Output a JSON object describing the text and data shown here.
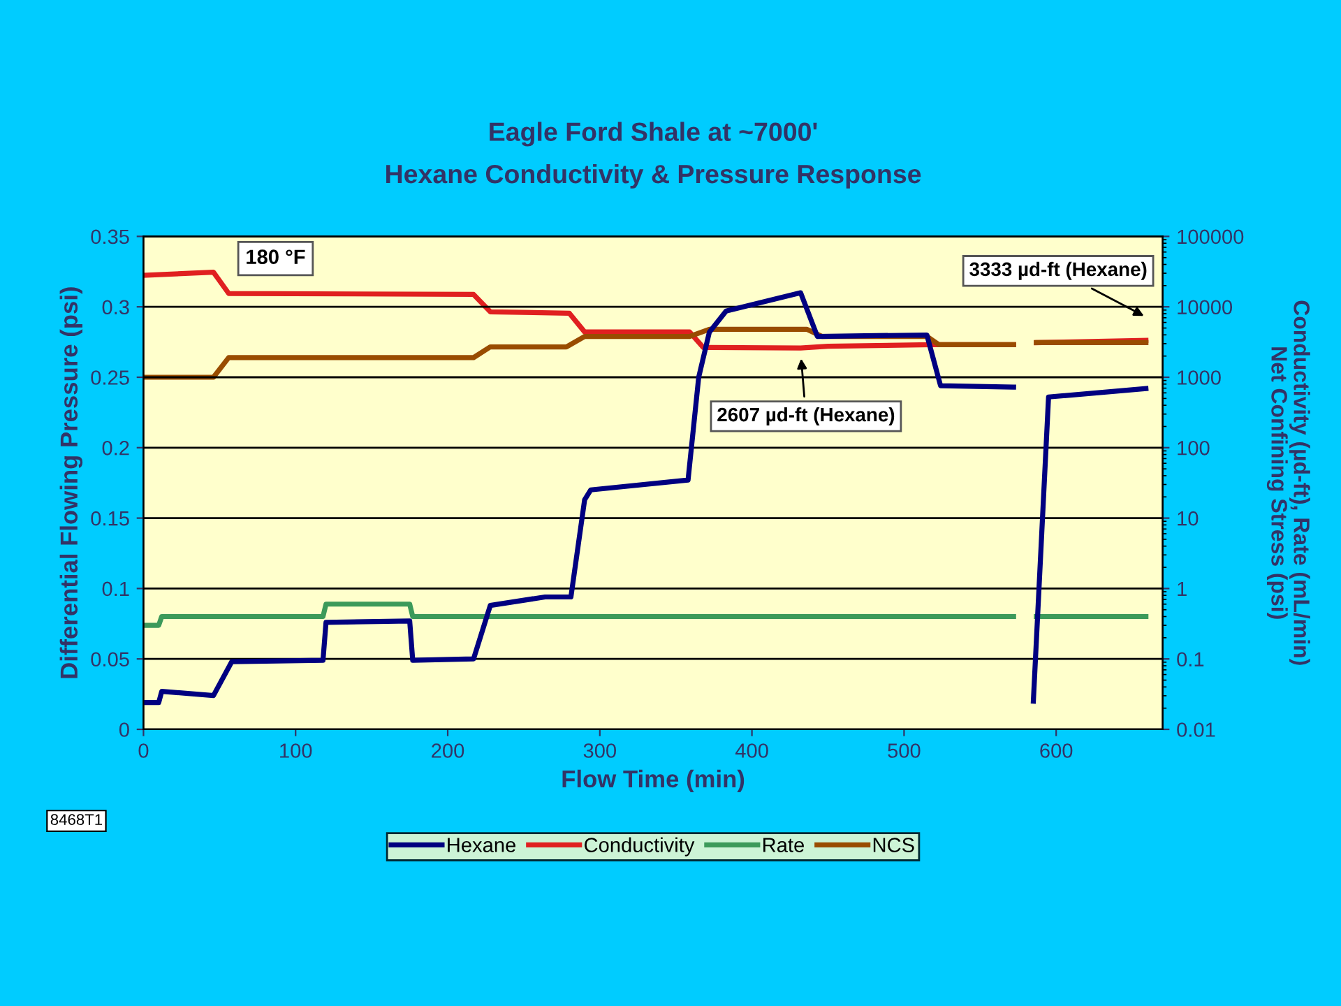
{
  "chart_data": {
    "type": "line",
    "title": "Eagle Ford Shale at ~7000'",
    "subtitle": "Hexane Conductivity & Pressure Response",
    "xlabel": "Flow Time (min)",
    "ylabel": "Differential Flowing Pressure (psi)",
    "y2label": "Conductivity (µd-ft), Rate (mL/min)\nNet Confining Stress (psi)",
    "xlim": [
      0,
      670
    ],
    "xticks": [
      0,
      100,
      200,
      300,
      400,
      500,
      600
    ],
    "ylim": [
      0,
      0.35
    ],
    "yticks": [
      0,
      0.05,
      0.1,
      0.15,
      0.2,
      0.25,
      0.3,
      0.35
    ],
    "y2lim": [
      0.01,
      100000
    ],
    "y2ticks": [
      0.01,
      0.1,
      1,
      10,
      100,
      1000,
      10000,
      100000
    ],
    "log": "y2",
    "grid": "y",
    "legend": "bottom",
    "marker": "none",
    "line_style": "solid",
    "series": [
      {
        "name": "Hexane",
        "color": "#000080",
        "x": [
          0,
          10,
          12,
          46,
          58,
          118,
          120,
          175,
          177,
          217,
          228,
          264,
          281,
          290,
          294,
          358,
          365,
          372,
          383,
          432,
          443,
          515,
          524,
          572,
          578,
          585,
          595,
          659
        ],
        "values": [
          0.019,
          0.019,
          0.027,
          0.024,
          0.048,
          0.049,
          0.076,
          0.077,
          0.049,
          0.05,
          0.088,
          0.094,
          0.094,
          0.163,
          0.17,
          0.177,
          0.25,
          0.282,
          0.297,
          0.31,
          0.279,
          0.28,
          0.244,
          0.243,
          null,
          0.02,
          0.236,
          0.242
        ]
      },
      {
        "name": "Conductivity",
        "color": "#e02020",
        "axis": "y2",
        "x": [
          0,
          46,
          56,
          217,
          228,
          280,
          290,
          359,
          368,
          432,
          450,
          518,
          572,
          580,
          587,
          659
        ],
        "values": [
          28000,
          31000,
          15500,
          15000,
          8500,
          8100,
          4400,
          4400,
          2650,
          2607,
          2750,
          2900,
          2900,
          null,
          3100,
          3333
        ]
      },
      {
        "name": "Rate",
        "color": "#3c9a5a",
        "axis": "y2",
        "x": [
          0,
          10,
          12,
          118,
          120,
          175,
          177,
          572,
          580,
          587,
          659
        ],
        "values": [
          0.3,
          0.3,
          0.4,
          0.4,
          0.6,
          0.6,
          0.4,
          0.4,
          null,
          0.4,
          0.4
        ]
      },
      {
        "name": "NCS",
        "color": "#994c00",
        "axis": "y2",
        "x": [
          0,
          46,
          56,
          217,
          228,
          278,
          290,
          359,
          372,
          436,
          446,
          515,
          523,
          572,
          580,
          587,
          659
        ],
        "values": [
          1000,
          1000,
          1900,
          1900,
          2700,
          2700,
          3800,
          3800,
          4800,
          4800,
          3800,
          3800,
          2900,
          2900,
          null,
          3100,
          3100
        ]
      }
    ],
    "annotations": [
      "180 °F",
      "3333 µd-ft (Hexane)",
      "2607 µd-ft (Hexane)",
      "8468T1"
    ]
  }
}
